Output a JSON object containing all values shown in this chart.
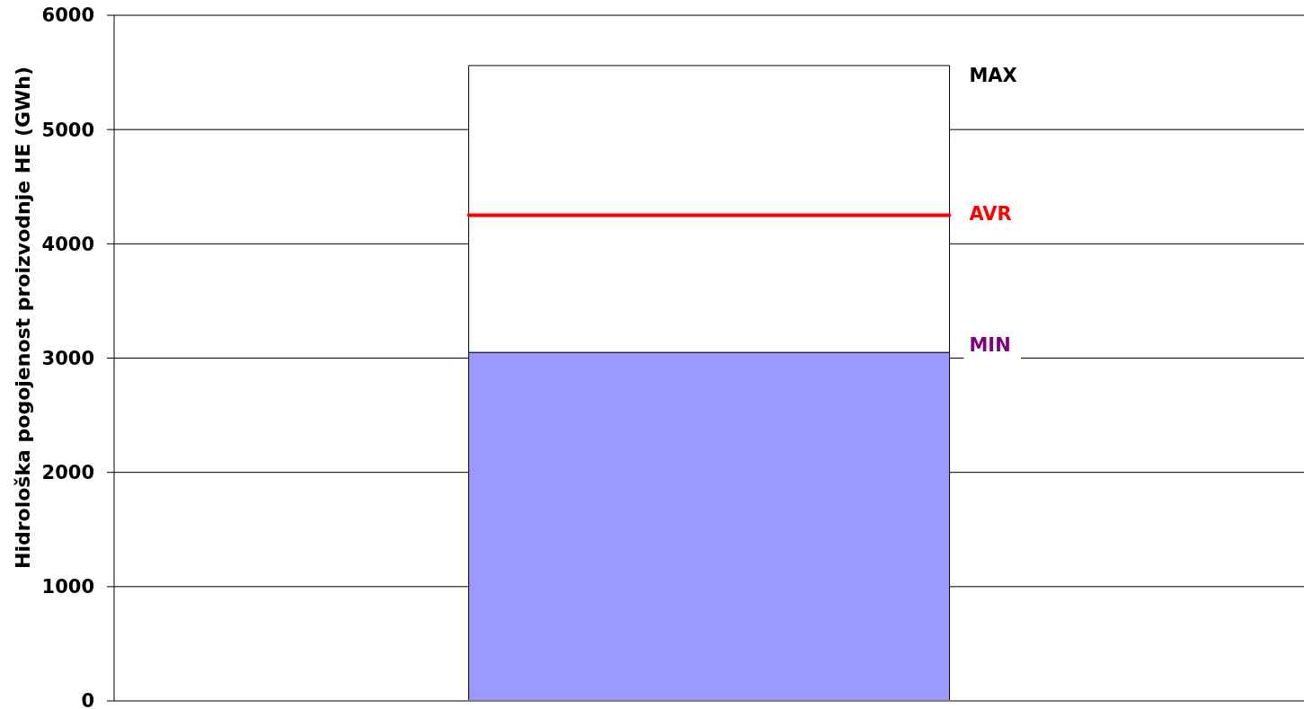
{
  "chart_data": {
    "type": "bar",
    "ylabel": "Hidrološka pogojenost proizvodnje HE (GWh)",
    "categories": [
      null
    ],
    "series": [
      {
        "color": "#9999ff",
        "values": [
          3050
        ]
      },
      {
        "color": "#ffffff",
        "values": [
          2510
        ]
      }
    ],
    "stacked": true,
    "ylim": [
      0,
      6000
    ],
    "yticks": [
      0,
      1000,
      2000,
      3000,
      4000,
      5000,
      6000
    ],
    "grid": "y",
    "tick_labels": "y",
    "legend": false,
    "ref_lines": [
      {
        "axis": "y",
        "value": 4250,
        "label": "AVR",
        "color": "#ff0000"
      }
    ],
    "annotations": [
      "MAX",
      "MIN"
    ]
  }
}
